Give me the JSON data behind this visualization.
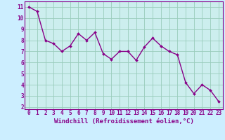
{
  "x": [
    0,
    1,
    2,
    3,
    4,
    5,
    6,
    7,
    8,
    9,
    10,
    11,
    12,
    13,
    14,
    15,
    16,
    17,
    18,
    19,
    20,
    21,
    22,
    23
  ],
  "y": [
    11.0,
    10.6,
    8.0,
    7.7,
    7.0,
    7.5,
    8.6,
    8.0,
    8.7,
    6.8,
    6.3,
    7.0,
    7.0,
    6.2,
    7.4,
    8.2,
    7.5,
    7.0,
    6.7,
    4.2,
    3.2,
    4.0,
    3.5,
    2.5
  ],
  "line_color": "#880088",
  "marker": "D",
  "marker_size": 2.0,
  "linewidth": 1.0,
  "background_color": "#cceeff",
  "plot_bg_color": "#cceeee",
  "grid_color": "#99ccbb",
  "xlabel": "Windchill (Refroidissement éolien,°C)",
  "xlabel_fontsize": 6.5,
  "xtick_labels": [
    "0",
    "1",
    "2",
    "3",
    "4",
    "5",
    "6",
    "7",
    "8",
    "9",
    "10",
    "11",
    "12",
    "13",
    "14",
    "15",
    "16",
    "17",
    "18",
    "19",
    "20",
    "21",
    "22",
    "23"
  ],
  "ytick_vals": [
    2,
    3,
    4,
    5,
    6,
    7,
    8,
    9,
    10,
    11
  ],
  "ytick_labels": [
    "2",
    "3",
    "4",
    "5",
    "6",
    "7",
    "8",
    "9",
    "10",
    "11"
  ],
  "ylim": [
    1.8,
    11.5
  ],
  "xlim": [
    -0.5,
    23.5
  ],
  "tick_fontsize": 5.5,
  "label_color": "#880088",
  "spine_color": "#880088"
}
